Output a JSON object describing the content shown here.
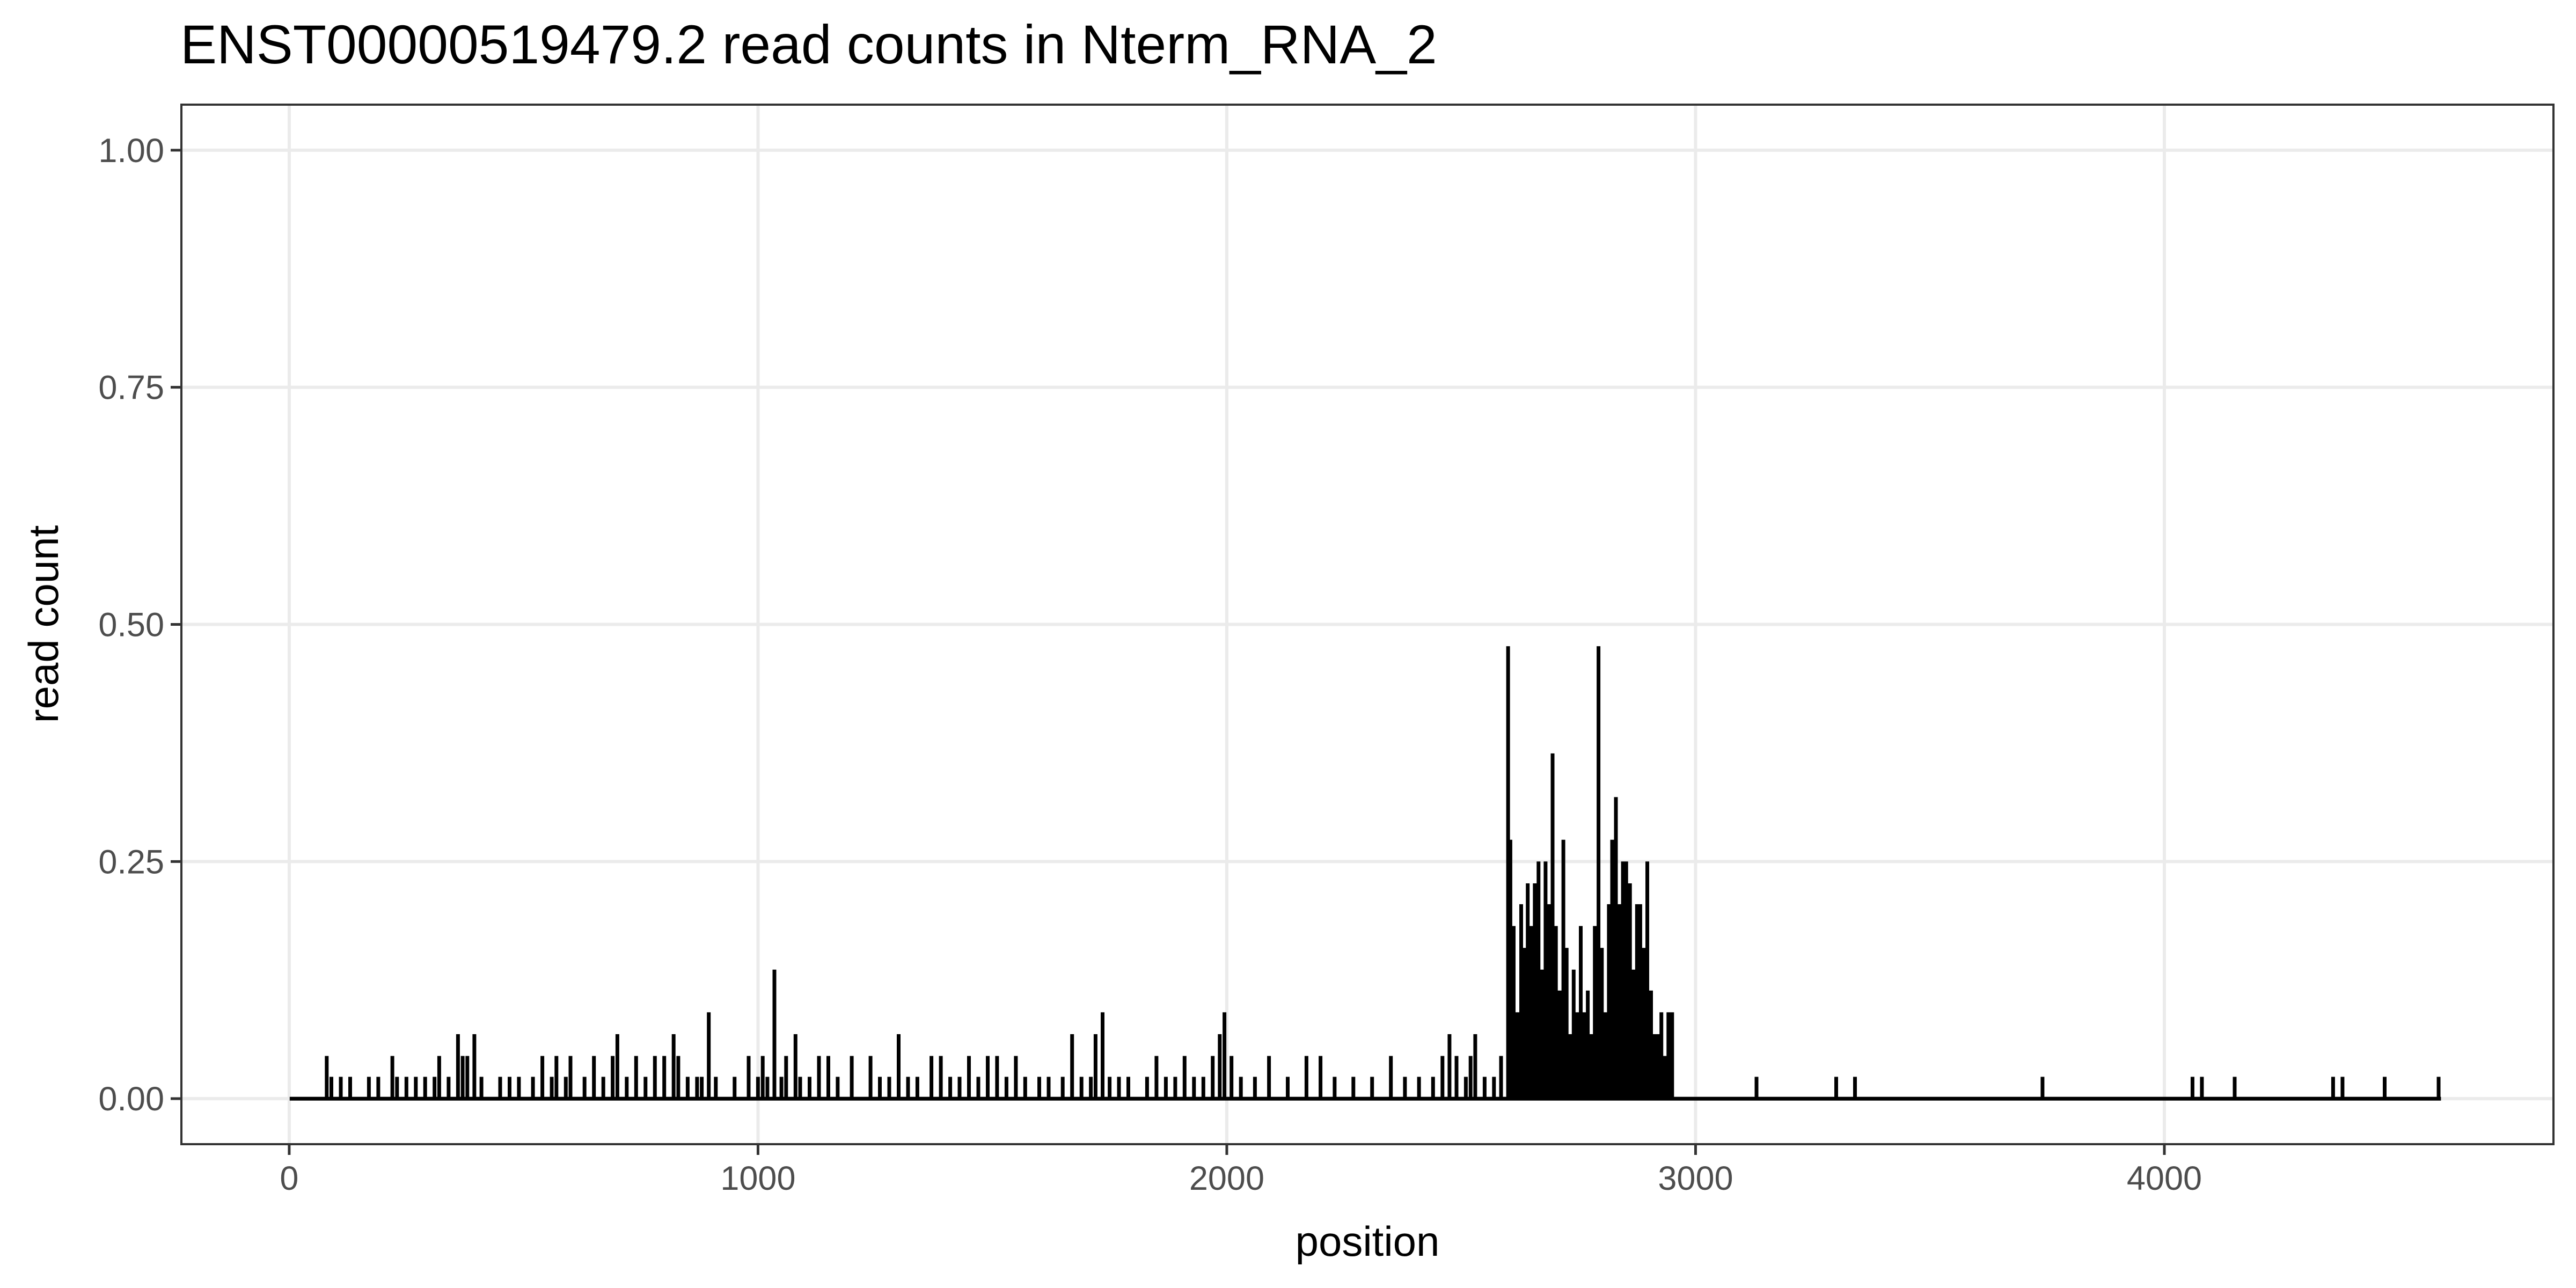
{
  "chart_data": {
    "type": "line",
    "title": "ENST00000519479.2  read counts in  Nterm_RNA_2",
    "xlabel": "position",
    "ylabel": "read count",
    "xlim": [
      -230,
      4830
    ],
    "ylim": [
      -0.048,
      1.048
    ],
    "x_ticks": [
      0,
      1000,
      2000,
      3000,
      4000
    ],
    "x_tick_labels": [
      "0",
      "1000",
      "2000",
      "3000",
      "4000"
    ],
    "y_ticks": [
      0,
      0.25,
      0.5,
      0.75,
      1.0
    ],
    "y_tick_labels": [
      "0.00",
      "0.25",
      "0.50",
      "0.75",
      "1.00"
    ],
    "grid": true,
    "line_color": "#000000",
    "x_min": 1,
    "x_max": 4590,
    "series": [
      {
        "points": [
          [
            80,
            0.045
          ],
          [
            90,
            0.023
          ],
          [
            110,
            0.023
          ],
          [
            130,
            0.023
          ],
          [
            170,
            0.023
          ],
          [
            190,
            0.023
          ],
          [
            220,
            0.045
          ],
          [
            230,
            0.023
          ],
          [
            250,
            0.023
          ],
          [
            270,
            0.023
          ],
          [
            290,
            0.023
          ],
          [
            310,
            0.023
          ],
          [
            320,
            0.045
          ],
          [
            340,
            0.023
          ],
          [
            360,
            0.068
          ],
          [
            370,
            0.045
          ],
          [
            380,
            0.045
          ],
          [
            395,
            0.068
          ],
          [
            410,
            0.023
          ],
          [
            450,
            0.023
          ],
          [
            470,
            0.023
          ],
          [
            490,
            0.023
          ],
          [
            520,
            0.023
          ],
          [
            540,
            0.045
          ],
          [
            560,
            0.023
          ],
          [
            570,
            0.045
          ],
          [
            590,
            0.023
          ],
          [
            600,
            0.045
          ],
          [
            630,
            0.023
          ],
          [
            650,
            0.045
          ],
          [
            670,
            0.023
          ],
          [
            690,
            0.045
          ],
          [
            700,
            0.068
          ],
          [
            720,
            0.023
          ],
          [
            740,
            0.045
          ],
          [
            760,
            0.023
          ],
          [
            780,
            0.045
          ],
          [
            800,
            0.045
          ],
          [
            820,
            0.068
          ],
          [
            830,
            0.045
          ],
          [
            850,
            0.023
          ],
          [
            870,
            0.023
          ],
          [
            880,
            0.023
          ],
          [
            895,
            0.091
          ],
          [
            910,
            0.023
          ],
          [
            950,
            0.023
          ],
          [
            980,
            0.045
          ],
          [
            1000,
            0.023
          ],
          [
            1010,
            0.045
          ],
          [
            1020,
            0.023
          ],
          [
            1035,
            0.136
          ],
          [
            1050,
            0.023
          ],
          [
            1060,
            0.045
          ],
          [
            1080,
            0.068
          ],
          [
            1090,
            0.023
          ],
          [
            1110,
            0.023
          ],
          [
            1130,
            0.045
          ],
          [
            1150,
            0.045
          ],
          [
            1170,
            0.023
          ],
          [
            1200,
            0.045
          ],
          [
            1240,
            0.045
          ],
          [
            1260,
            0.023
          ],
          [
            1280,
            0.023
          ],
          [
            1300,
            0.068
          ],
          [
            1320,
            0.023
          ],
          [
            1340,
            0.023
          ],
          [
            1370,
            0.045
          ],
          [
            1390,
            0.045
          ],
          [
            1410,
            0.023
          ],
          [
            1430,
            0.023
          ],
          [
            1450,
            0.045
          ],
          [
            1470,
            0.023
          ],
          [
            1490,
            0.045
          ],
          [
            1510,
            0.045
          ],
          [
            1530,
            0.023
          ],
          [
            1550,
            0.045
          ],
          [
            1570,
            0.023
          ],
          [
            1600,
            0.023
          ],
          [
            1620,
            0.023
          ],
          [
            1650,
            0.023
          ],
          [
            1670,
            0.068
          ],
          [
            1690,
            0.023
          ],
          [
            1710,
            0.023
          ],
          [
            1720,
            0.068
          ],
          [
            1735,
            0.091
          ],
          [
            1750,
            0.023
          ],
          [
            1770,
            0.023
          ],
          [
            1790,
            0.023
          ],
          [
            1830,
            0.023
          ],
          [
            1850,
            0.045
          ],
          [
            1870,
            0.023
          ],
          [
            1890,
            0.023
          ],
          [
            1910,
            0.045
          ],
          [
            1930,
            0.023
          ],
          [
            1950,
            0.023
          ],
          [
            1970,
            0.045
          ],
          [
            1985,
            0.068
          ],
          [
            1995,
            0.091
          ],
          [
            2010,
            0.045
          ],
          [
            2030,
            0.023
          ],
          [
            2060,
            0.023
          ],
          [
            2090,
            0.045
          ],
          [
            2130,
            0.023
          ],
          [
            2170,
            0.045
          ],
          [
            2200,
            0.045
          ],
          [
            2230,
            0.023
          ],
          [
            2270,
            0.023
          ],
          [
            2310,
            0.023
          ],
          [
            2350,
            0.045
          ],
          [
            2380,
            0.023
          ],
          [
            2410,
            0.023
          ],
          [
            2440,
            0.023
          ],
          [
            2460,
            0.045
          ],
          [
            2475,
            0.068
          ],
          [
            2490,
            0.045
          ],
          [
            2510,
            0.023
          ],
          [
            2520,
            0.045
          ],
          [
            2530,
            0.068
          ],
          [
            2550,
            0.023
          ],
          [
            2570,
            0.023
          ],
          [
            2585,
            0.045
          ],
          [
            2600,
            0.477
          ],
          [
            2605,
            0.273
          ],
          [
            2612,
            0.182
          ],
          [
            2620,
            0.091
          ],
          [
            2628,
            0.205
          ],
          [
            2635,
            0.159
          ],
          [
            2642,
            0.227
          ],
          [
            2650,
            0.182
          ],
          [
            2657,
            0.227
          ],
          [
            2665,
            0.25
          ],
          [
            2672,
            0.136
          ],
          [
            2680,
            0.25
          ],
          [
            2688,
            0.205
          ],
          [
            2695,
            0.364
          ],
          [
            2702,
            0.182
          ],
          [
            2710,
            0.114
          ],
          [
            2718,
            0.273
          ],
          [
            2725,
            0.159
          ],
          [
            2732,
            0.068
          ],
          [
            2740,
            0.136
          ],
          [
            2748,
            0.091
          ],
          [
            2755,
            0.182
          ],
          [
            2762,
            0.091
          ],
          [
            2770,
            0.114
          ],
          [
            2778,
            0.068
          ],
          [
            2785,
            0.182
          ],
          [
            2793,
            0.477
          ],
          [
            2800,
            0.159
          ],
          [
            2808,
            0.091
          ],
          [
            2815,
            0.205
          ],
          [
            2822,
            0.273
          ],
          [
            2830,
            0.318
          ],
          [
            2837,
            0.205
          ],
          [
            2845,
            0.25
          ],
          [
            2852,
            0.25
          ],
          [
            2860,
            0.227
          ],
          [
            2867,
            0.136
          ],
          [
            2875,
            0.205
          ],
          [
            2882,
            0.205
          ],
          [
            2890,
            0.159
          ],
          [
            2897,
            0.25
          ],
          [
            2905,
            0.114
          ],
          [
            2913,
            0.068
          ],
          [
            2920,
            0.068
          ],
          [
            2927,
            0.091
          ],
          [
            2935,
            0.045
          ],
          [
            2942,
            0.091
          ],
          [
            2950,
            0.091
          ],
          [
            3130,
            0.023
          ],
          [
            3300,
            0.023
          ],
          [
            3340,
            0.023
          ],
          [
            3740,
            0.023
          ],
          [
            4060,
            0.023
          ],
          [
            4080,
            0.023
          ],
          [
            4150,
            0.023
          ],
          [
            4360,
            0.023
          ],
          [
            4380,
            0.023
          ],
          [
            4470,
            0.023
          ],
          [
            4585,
            0.023
          ]
        ]
      }
    ]
  }
}
